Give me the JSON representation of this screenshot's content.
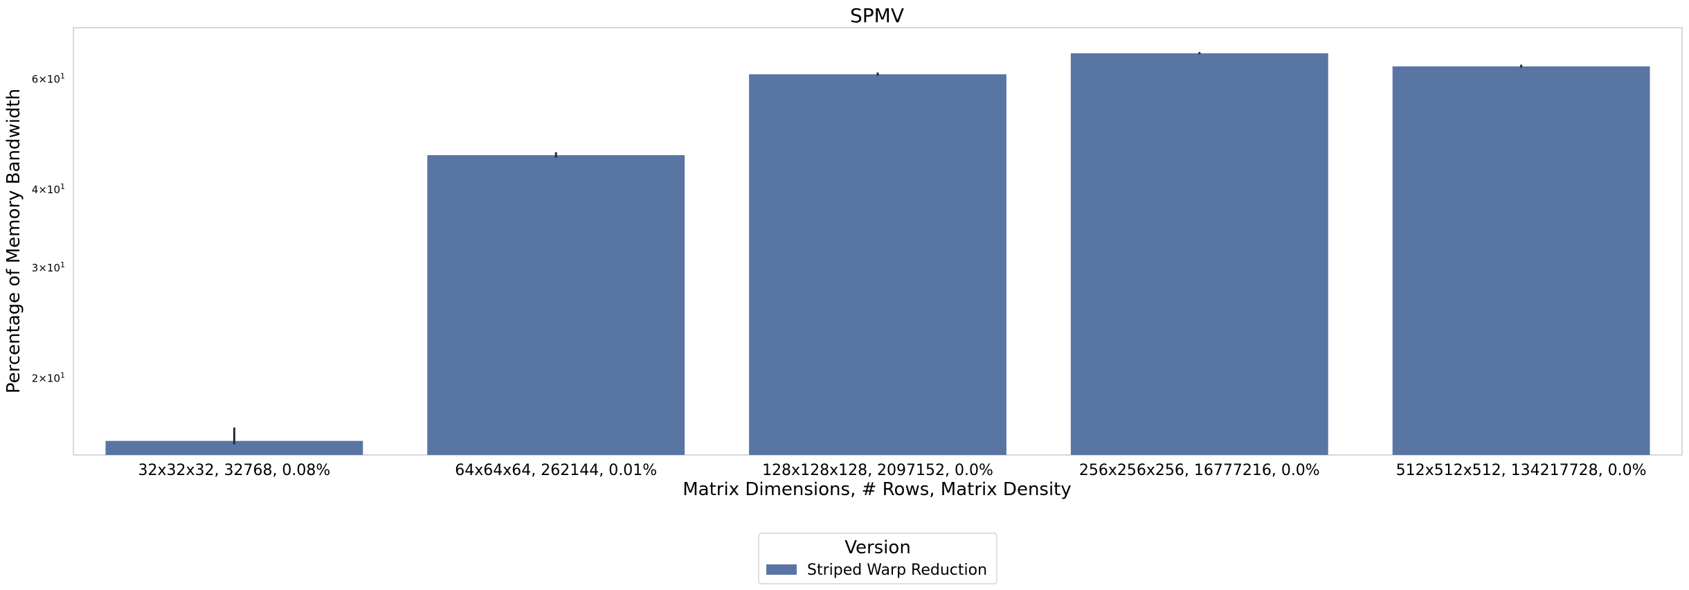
{
  "chart_data": {
    "type": "bar",
    "title": "SPMV",
    "xlabel": "Matrix Dimensions, # Rows, Matrix Density",
    "ylabel": "Percentage of Memory Bandwidth",
    "yscale": "log",
    "ylim": [
      15.1,
      72.5
    ],
    "grid": false,
    "categories": [
      "32x32x32, 32768, 0.08%",
      "64x64x64, 262144, 0.01%",
      "128x128x128, 2097152, 0.0%",
      "256x256x256, 16777216, 0.0%",
      "512x512x512, 134217728, 0.0%"
    ],
    "series": [
      {
        "name": "Striped Warp Reduction",
        "values": [
          15.9,
          45.4,
          61.1,
          66.0,
          62.9
        ],
        "error_low": [
          15.7,
          45.0,
          60.8,
          65.8,
          62.6
        ],
        "error_high": [
          16.7,
          45.9,
          61.5,
          66.3,
          63.3
        ]
      }
    ],
    "y_ticks": [
      {
        "value": 20,
        "base": "2",
        "sep": "×10",
        "exp": "1"
      },
      {
        "value": 30,
        "base": "3",
        "sep": "×10",
        "exp": "1"
      },
      {
        "value": 40,
        "base": "4",
        "sep": "×10",
        "exp": "1"
      },
      {
        "value": 60,
        "base": "6",
        "sep": "×10",
        "exp": "1"
      }
    ],
    "legend": {
      "title": "Version",
      "placement": "bottom-center",
      "entries": [
        "Striped Warp Reduction"
      ]
    },
    "colors": {
      "bar": "#5975a4",
      "errorbar": "#2b2b2b",
      "frame": "#cccccc"
    }
  }
}
